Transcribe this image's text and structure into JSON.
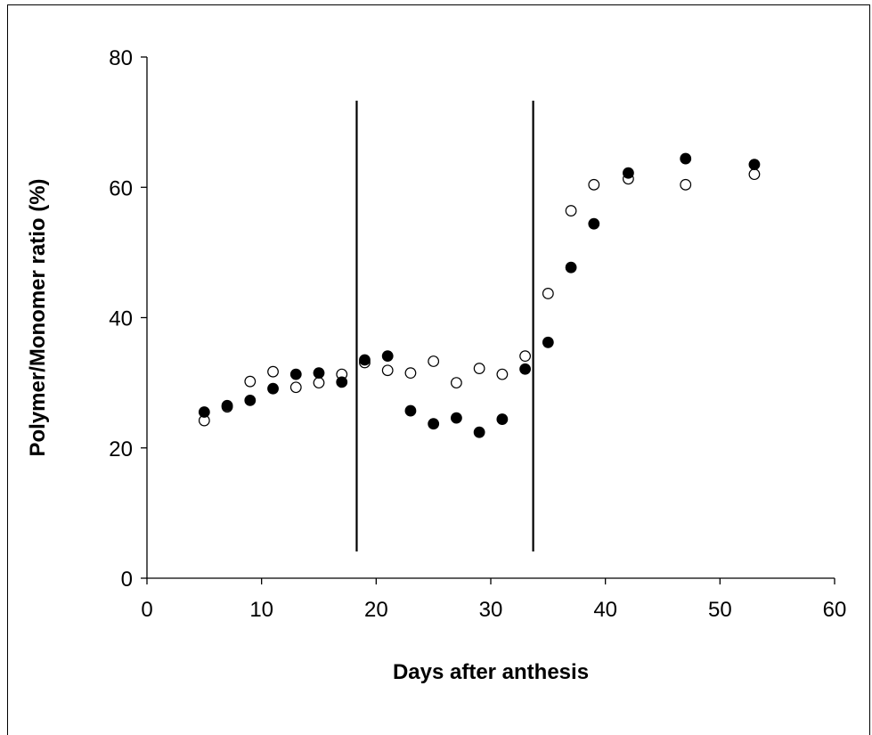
{
  "chart_data": {
    "type": "scatter",
    "title": "",
    "xlabel": "Days after anthesis",
    "ylabel": "Polymer/Monomer ratio (%)",
    "xlim": [
      0,
      60
    ],
    "ylim": [
      0,
      80
    ],
    "xticks": [
      0,
      10,
      20,
      30,
      40,
      50,
      60
    ],
    "yticks": [
      0,
      20,
      40,
      60,
      80
    ],
    "grid": false,
    "legend": "none",
    "vertical_lines": [
      18.3,
      33.7
    ],
    "series": [
      {
        "marker": "filled-circle",
        "color": "#000000",
        "points": [
          [
            5,
            25.5
          ],
          [
            7,
            26.5
          ],
          [
            9,
            27.3
          ],
          [
            11,
            29.1
          ],
          [
            13,
            31.3
          ],
          [
            15,
            31.5
          ],
          [
            17,
            30.1
          ],
          [
            19,
            33.5
          ],
          [
            21,
            34.1
          ],
          [
            23,
            25.7
          ],
          [
            25,
            23.7
          ],
          [
            27,
            24.6
          ],
          [
            29,
            22.4
          ],
          [
            31,
            24.4
          ],
          [
            33,
            32.1
          ],
          [
            35,
            36.2
          ],
          [
            37,
            47.7
          ],
          [
            39,
            54.4
          ],
          [
            42,
            62.2
          ],
          [
            47,
            64.4
          ],
          [
            53,
            63.5
          ]
        ]
      },
      {
        "marker": "open-circle",
        "color": "#000000",
        "points": [
          [
            5,
            24.2
          ],
          [
            7,
            26.3
          ],
          [
            9,
            30.2
          ],
          [
            11,
            31.7
          ],
          [
            13,
            29.3
          ],
          [
            15,
            30.0
          ],
          [
            17,
            31.3
          ],
          [
            19,
            33.1
          ],
          [
            21,
            31.9
          ],
          [
            23,
            31.5
          ],
          [
            25,
            33.3
          ],
          [
            27,
            30.0
          ],
          [
            29,
            32.2
          ],
          [
            31,
            31.3
          ],
          [
            33,
            34.1
          ],
          [
            35,
            43.7
          ],
          [
            37,
            56.4
          ],
          [
            39,
            60.4
          ],
          [
            42,
            61.3
          ],
          [
            47,
            60.4
          ],
          [
            53,
            62.0
          ]
        ]
      }
    ]
  }
}
